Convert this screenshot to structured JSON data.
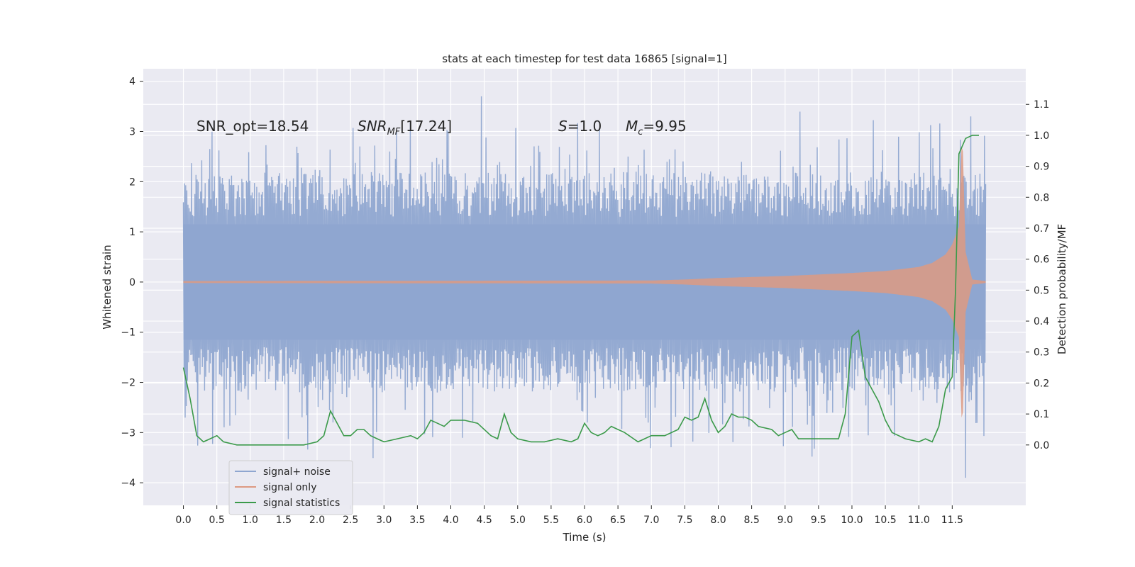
{
  "chart_data": {
    "type": "line",
    "title": "stats at each timestep for test data 16865 [signal=1]",
    "xlabel": "Time (s)",
    "ylabel": "Whitened strain",
    "y2label": "Detection probability/MF",
    "xlim": [
      -0.6,
      12.6
    ],
    "ylim": [
      -4.45,
      4.25
    ],
    "y2lim": [
      -0.195,
      1.215
    ],
    "x_ticks": [
      "0.0",
      "0.5",
      "1.0",
      "1.5",
      "2.0",
      "2.5",
      "3.0",
      "3.5",
      "4.0",
      "4.5",
      "5.0",
      "5.5",
      "6.0",
      "6.5",
      "7.0",
      "7.5",
      "8.0",
      "8.5",
      "9.0",
      "9.5",
      "10.0",
      "10.5",
      "11.0",
      "11.5"
    ],
    "y_ticks": [
      "4",
      "3",
      "2",
      "1",
      "0",
      "−1",
      "−2",
      "−3",
      "−4"
    ],
    "y2_ticks": [
      "1.1",
      "1.0",
      "0.9",
      "0.8",
      "0.7",
      "0.6",
      "0.5",
      "0.4",
      "0.3",
      "0.2",
      "0.1",
      "0.0"
    ],
    "grid": true,
    "legend_position": "lower-left",
    "annotations": {
      "snr_opt": "SNR_opt=18.54",
      "snr_mf": "[17.24]",
      "s": "=1.0",
      "mc": "=9.95"
    },
    "series": [
      {
        "name": "signal+ noise",
        "color": "#8fa6d0",
        "x_range": [
          0.0,
          12.0
        ],
        "envelope_upper_typical": 1.8,
        "envelope_lower_typical": -1.8,
        "peak_max": 3.9,
        "peak_min": -4.1
      },
      {
        "name": "signal only",
        "color": "#dd9a82",
        "x_range": [
          0.0,
          12.0
        ],
        "amplitude": {
          "x": [
            0.0,
            7.0,
            7.5,
            8.0,
            9.0,
            10.0,
            10.5,
            11.0,
            11.2,
            11.4,
            11.5,
            11.6,
            11.65,
            11.7,
            11.8,
            12.0
          ],
          "values": [
            0.02,
            0.03,
            0.05,
            0.08,
            0.12,
            0.18,
            0.22,
            0.3,
            0.38,
            0.55,
            0.75,
            1.1,
            3.1,
            0.6,
            0.05,
            0.02
          ]
        }
      },
      {
        "name": "signal statistics",
        "color": "#3b9a4a",
        "x": [
          0.0,
          0.1,
          0.2,
          0.3,
          0.4,
          0.5,
          0.6,
          0.8,
          1.0,
          1.2,
          1.5,
          1.8,
          2.0,
          2.1,
          2.2,
          2.3,
          2.4,
          2.5,
          2.6,
          2.7,
          2.8,
          2.9,
          3.0,
          3.2,
          3.4,
          3.5,
          3.6,
          3.7,
          3.8,
          3.9,
          4.0,
          4.1,
          4.2,
          4.4,
          4.6,
          4.7,
          4.8,
          4.9,
          5.0,
          5.2,
          5.4,
          5.6,
          5.8,
          5.9,
          6.0,
          6.1,
          6.2,
          6.3,
          6.4,
          6.6,
          6.8,
          7.0,
          7.2,
          7.4,
          7.5,
          7.6,
          7.7,
          7.8,
          7.9,
          8.0,
          8.1,
          8.2,
          8.3,
          8.4,
          8.5,
          8.6,
          8.8,
          8.9,
          9.0,
          9.1,
          9.2,
          9.4,
          9.6,
          9.8,
          9.9,
          10.0,
          10.1,
          10.2,
          10.3,
          10.4,
          10.5,
          10.6,
          10.8,
          11.0,
          11.1,
          11.2,
          11.3,
          11.4,
          11.5,
          11.55,
          11.6,
          11.7,
          11.8,
          11.9
        ],
        "values": [
          0.25,
          0.15,
          0.03,
          0.01,
          0.02,
          0.03,
          0.01,
          0.0,
          0.0,
          0.0,
          0.0,
          0.0,
          0.01,
          0.03,
          0.11,
          0.07,
          0.03,
          0.03,
          0.05,
          0.05,
          0.03,
          0.02,
          0.01,
          0.02,
          0.03,
          0.02,
          0.04,
          0.08,
          0.07,
          0.06,
          0.08,
          0.08,
          0.08,
          0.07,
          0.03,
          0.02,
          0.1,
          0.04,
          0.02,
          0.01,
          0.01,
          0.02,
          0.01,
          0.02,
          0.07,
          0.04,
          0.03,
          0.04,
          0.06,
          0.04,
          0.01,
          0.03,
          0.03,
          0.05,
          0.09,
          0.08,
          0.09,
          0.15,
          0.08,
          0.04,
          0.06,
          0.1,
          0.09,
          0.09,
          0.08,
          0.06,
          0.05,
          0.03,
          0.04,
          0.05,
          0.02,
          0.02,
          0.02,
          0.02,
          0.1,
          0.35,
          0.37,
          0.22,
          0.18,
          0.14,
          0.08,
          0.04,
          0.02,
          0.01,
          0.02,
          0.01,
          0.06,
          0.18,
          0.22,
          0.5,
          0.94,
          0.99,
          1.0,
          1.0
        ]
      }
    ]
  }
}
